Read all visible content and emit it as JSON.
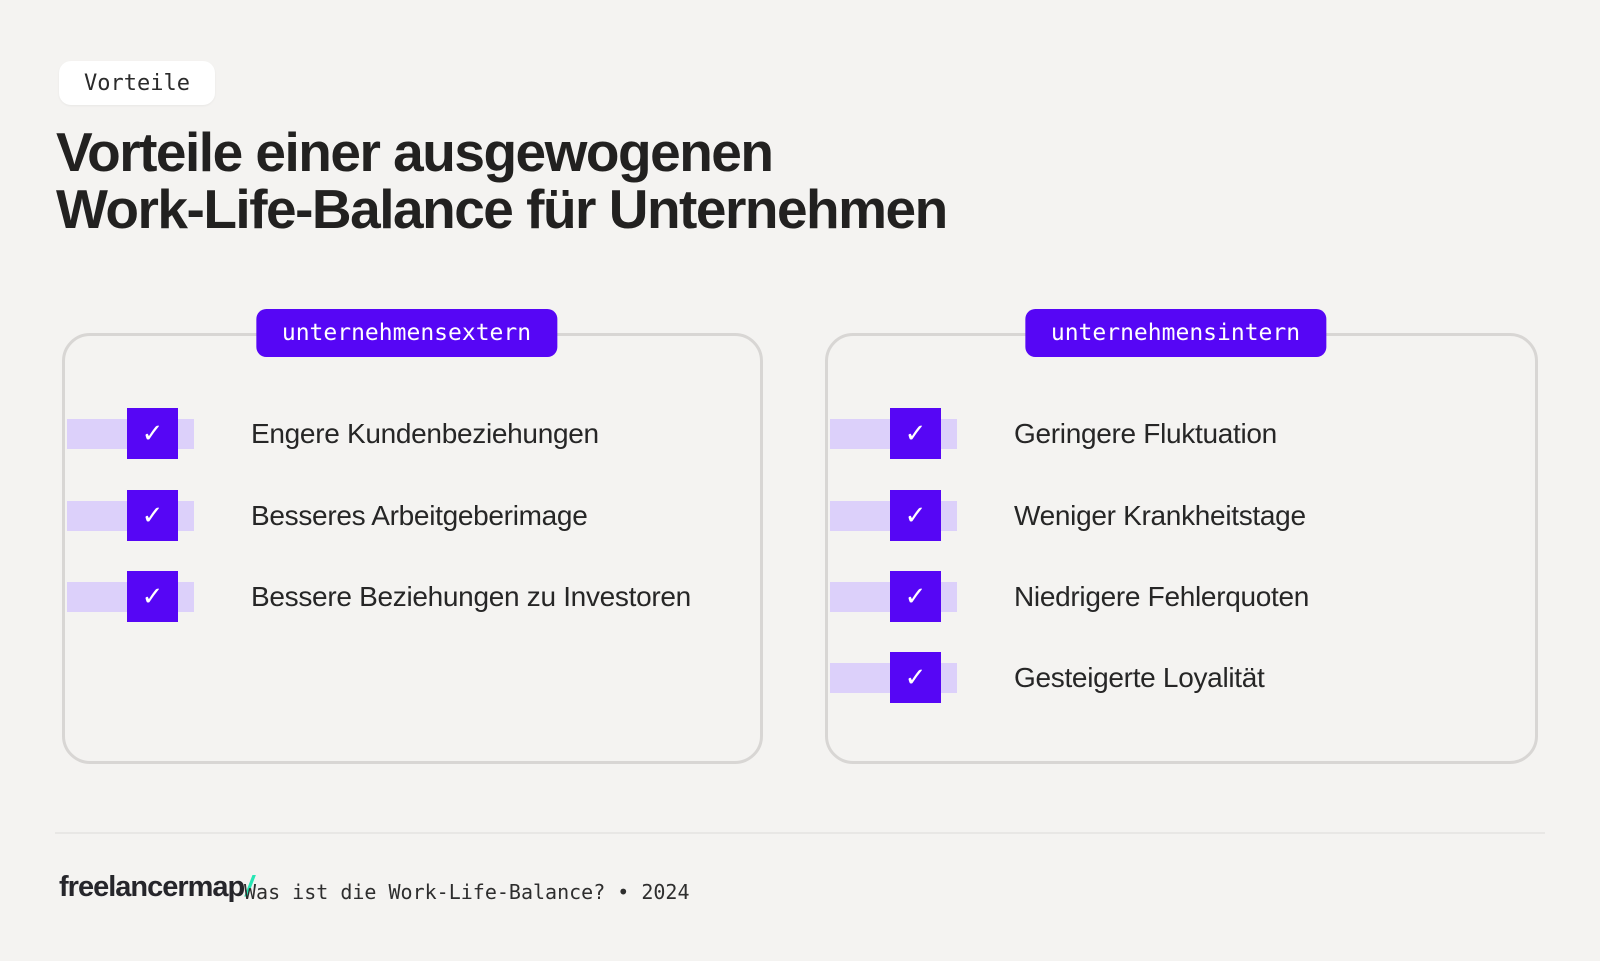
{
  "colors": {
    "background": "#f4f3f1",
    "accent_purple": "#5606f5",
    "light_purple": "#dcd0fa",
    "card_border": "#d8d6d4",
    "dark_text": "#222120",
    "logo_teal": "#27e6b4"
  },
  "tag": {
    "label": "Vorteile"
  },
  "title": {
    "line1": "Vorteile einer ausgewogenen",
    "line2": "Work-Life-Balance für Unternehmen"
  },
  "cards": [
    {
      "badge": "unternehmensextern",
      "items": [
        "Engere Kundenbeziehungen",
        "Besseres Arbeitgeberimage",
        "Bessere Beziehungen zu Investoren"
      ]
    },
    {
      "badge": "unternehmensintern",
      "items": [
        "Geringere Fluktuation",
        "Weniger Krankheitstage",
        "Niedrigere Fehlerquoten",
        "Gesteigerte Loyalität"
      ]
    }
  ],
  "icons": {
    "check": "✓"
  },
  "footer": {
    "logo_text": "freelancermap",
    "logo_slash": "/",
    "caption": "Was ist die Work-Life-Balance? • 2024"
  }
}
